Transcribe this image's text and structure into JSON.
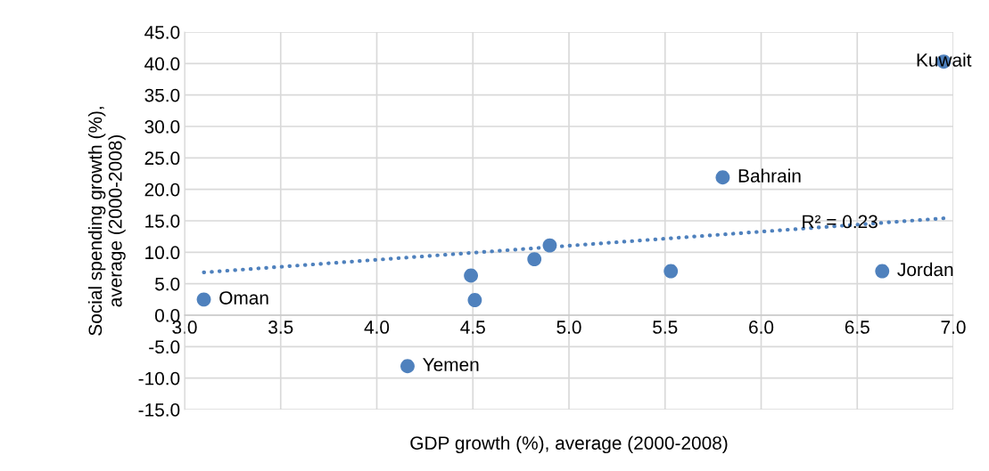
{
  "chart_data": {
    "type": "scatter",
    "xlabel": "GDP growth (%), average (2000-2008)",
    "ylabel": "Social spending growth (%),\naverage (2000-2008)",
    "x": [
      3.1,
      4.16,
      4.49,
      4.51,
      4.82,
      4.9,
      5.53,
      5.8,
      6.63,
      6.95
    ],
    "series": [
      {
        "color": "#4f81bd",
        "values": [
          2.5,
          -8.1,
          6.3,
          2.4,
          8.9,
          11.1,
          7.0,
          21.9,
          7.0,
          40.3
        ]
      },
      {
        "type": "line",
        "color": "#4f81bd",
        "line_style": "dotted",
        "marker": "none",
        "x": [
          3.1,
          6.95
        ],
        "values": [
          6.8,
          15.4
        ]
      }
    ],
    "annotations": [
      {
        "text": "Oman",
        "x": 3.1,
        "y": 2.5
      },
      {
        "text": "Yemen",
        "x": 4.16,
        "y": -8.1
      },
      {
        "text": "Bahrain",
        "x": 5.8,
        "y": 21.9
      },
      {
        "text": "Jordan",
        "x": 6.63,
        "y": 7.0
      },
      {
        "text": "Kuwait",
        "x": 6.95,
        "y": 40.3
      },
      "R² = 0.23"
    ],
    "marker": "circle",
    "xlim": [
      3.0,
      7.0
    ],
    "xticks": [
      {
        "value": 3.0,
        "label": "3.0"
      },
      {
        "value": 3.5,
        "label": "3.5"
      },
      {
        "value": 4.0,
        "label": "4.0"
      },
      {
        "value": 4.5,
        "label": "4.5"
      },
      {
        "value": 5.0,
        "label": "5.0"
      },
      {
        "value": 5.5,
        "label": "5.5"
      },
      {
        "value": 6.0,
        "label": "6.0"
      },
      {
        "value": 6.5,
        "label": "6.5"
      },
      {
        "value": 7.0,
        "label": "7.0"
      }
    ],
    "ylim": [
      -15.0,
      45.0
    ],
    "yticks": [
      {
        "value": -15,
        "label": "-15.0"
      },
      {
        "value": -10,
        "label": "-10.0"
      },
      {
        "value": -5,
        "label": "-5.0"
      },
      {
        "value": 0,
        "label": "0.0"
      },
      {
        "value": 5,
        "label": "5.0"
      },
      {
        "value": 10,
        "label": "10.0"
      },
      {
        "value": 15,
        "label": "15.0"
      },
      {
        "value": 20,
        "label": "20.0"
      },
      {
        "value": 25,
        "label": "25.0"
      },
      {
        "value": 30,
        "label": "30.0"
      },
      {
        "value": 35,
        "label": "35.0"
      },
      {
        "value": 40,
        "label": "40.0"
      },
      {
        "value": 45,
        "label": "45.0"
      }
    ],
    "grid": true,
    "legend": false
  }
}
